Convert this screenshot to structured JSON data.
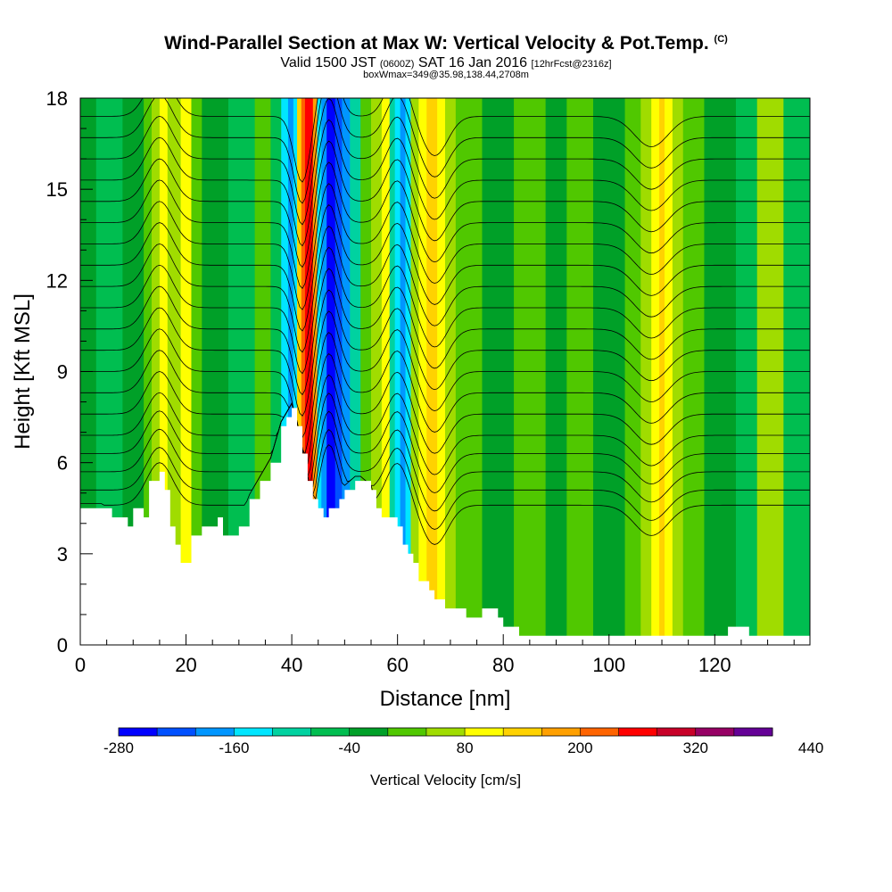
{
  "header": {
    "title": "Wind-Parallel Section at Max W: Vertical Velocity & Pot.Temp.",
    "copyright": "(C)",
    "valid_prefix": "Valid 1500 JST",
    "valid_zulu": "(0600Z)",
    "valid_date": "SAT 16 Jan 2016",
    "forecast": "[12hrFcst@2316z]",
    "box_info": "boxWmax=349@35.98,138.44,2708m"
  },
  "chart_data": {
    "type": "heatmap",
    "xlabel": "Distance [nm]",
    "ylabel": "Height [Kft MSL]",
    "xlim": [
      0,
      138
    ],
    "ylim": [
      0,
      18
    ],
    "x_ticks": [
      "0",
      "20",
      "40",
      "60",
      "80",
      "100",
      "120"
    ],
    "y_ticks": [
      "0",
      "3",
      "6",
      "9",
      "12",
      "15",
      "18"
    ],
    "colorbar": {
      "label": "Vertical Velocity [cm/s]",
      "tick_labels": [
        "-280",
        "-160",
        "-40",
        "80",
        "200",
        "320",
        "440"
      ],
      "colors": [
        "#0000ff",
        "#0050ff",
        "#0096ff",
        "#00e6ff",
        "#00d2a0",
        "#00be50",
        "#00a028",
        "#50c800",
        "#a0dc00",
        "#ffff00",
        "#ffd200",
        "#ffa000",
        "#ff6400",
        "#ff0000",
        "#c80028",
        "#960064",
        "#640096"
      ]
    },
    "velocity_bands": [
      {
        "x": [
          0,
          3
        ],
        "color": "#00a028"
      },
      {
        "x": [
          3,
          8
        ],
        "color": "#00be50"
      },
      {
        "x": [
          8,
          12
        ],
        "color": "#00a028"
      },
      {
        "x": [
          12,
          13.5
        ],
        "color": "#50c800"
      },
      {
        "x": [
          13.5,
          15
        ],
        "color": "#a0dc00"
      },
      {
        "x": [
          15,
          16.5
        ],
        "color": "#ffff00"
      },
      {
        "x": [
          16.5,
          19
        ],
        "color": "#a0dc00"
      },
      {
        "x": [
          19,
          21
        ],
        "color": "#ffff00"
      },
      {
        "x": [
          21,
          23
        ],
        "color": "#50c800"
      },
      {
        "x": [
          23,
          28
        ],
        "color": "#00a028"
      },
      {
        "x": [
          28,
          33
        ],
        "color": "#00be50"
      },
      {
        "x": [
          33,
          36
        ],
        "color": "#50c800"
      },
      {
        "x": [
          36,
          38
        ],
        "color": "#00be50"
      },
      {
        "x": [
          38,
          39.3
        ],
        "color": "#00e6ff"
      },
      {
        "x": [
          39.3,
          40.3
        ],
        "color": "#0096ff"
      },
      {
        "x": [
          40.3,
          41
        ],
        "color": "#00e6ff"
      },
      {
        "x": [
          41,
          41.8
        ],
        "color": "#ffd200"
      },
      {
        "x": [
          41.8,
          42.5
        ],
        "color": "#ff6400"
      },
      {
        "x": [
          42.5,
          44
        ],
        "color": "#ff0000"
      },
      {
        "x": [
          44,
          44.8
        ],
        "color": "#ffa000"
      },
      {
        "x": [
          44.8,
          45.6
        ],
        "color": "#00e6ff"
      },
      {
        "x": [
          45.6,
          46.6
        ],
        "color": "#0096ff"
      },
      {
        "x": [
          46.6,
          48.2
        ],
        "color": "#0000ff"
      },
      {
        "x": [
          48.2,
          49.5
        ],
        "color": "#0050ff"
      },
      {
        "x": [
          49.5,
          51
        ],
        "color": "#0096ff"
      },
      {
        "x": [
          51,
          53
        ],
        "color": "#00d2a0"
      },
      {
        "x": [
          53,
          55
        ],
        "color": "#50c800"
      },
      {
        "x": [
          55,
          57
        ],
        "color": "#a0dc00"
      },
      {
        "x": [
          57,
          58.5
        ],
        "color": "#ffff00"
      },
      {
        "x": [
          58.5,
          59.5
        ],
        "color": "#00d2a0"
      },
      {
        "x": [
          59.5,
          60.5
        ],
        "color": "#00e6ff"
      },
      {
        "x": [
          60.5,
          61.5
        ],
        "color": "#0096ff"
      },
      {
        "x": [
          61.5,
          62.5
        ],
        "color": "#00e6ff"
      },
      {
        "x": [
          62.5,
          64
        ],
        "color": "#a0dc00"
      },
      {
        "x": [
          64,
          65.5
        ],
        "color": "#ffff00"
      },
      {
        "x": [
          65.5,
          67.5
        ],
        "color": "#ffd200"
      },
      {
        "x": [
          67.5,
          69
        ],
        "color": "#ffff00"
      },
      {
        "x": [
          69,
          71
        ],
        "color": "#a0dc00"
      },
      {
        "x": [
          71,
          76
        ],
        "color": "#50c800"
      },
      {
        "x": [
          76,
          82
        ],
        "color": "#00a028"
      },
      {
        "x": [
          82,
          88
        ],
        "color": "#50c800"
      },
      {
        "x": [
          88,
          92
        ],
        "color": "#00a028"
      },
      {
        "x": [
          92,
          97
        ],
        "color": "#50c800"
      },
      {
        "x": [
          97,
          103
        ],
        "color": "#00a028"
      },
      {
        "x": [
          103,
          106
        ],
        "color": "#50c800"
      },
      {
        "x": [
          106,
          108
        ],
        "color": "#a0dc00"
      },
      {
        "x": [
          108,
          109.5
        ],
        "color": "#ffff00"
      },
      {
        "x": [
          109.5,
          110.5
        ],
        "color": "#ffd200"
      },
      {
        "x": [
          110.5,
          112
        ],
        "color": "#ffff00"
      },
      {
        "x": [
          112,
          114
        ],
        "color": "#a0dc00"
      },
      {
        "x": [
          114,
          118
        ],
        "color": "#50c800"
      },
      {
        "x": [
          118,
          124
        ],
        "color": "#00a028"
      },
      {
        "x": [
          124,
          128
        ],
        "color": "#00be50"
      },
      {
        "x": [
          128,
          133
        ],
        "color": "#a0dc00"
      },
      {
        "x": [
          133,
          138
        ],
        "color": "#00be50"
      }
    ],
    "terrain_height_kft": [
      [
        0,
        4.5
      ],
      [
        4,
        4.5
      ],
      [
        6,
        4.2
      ],
      [
        8,
        4.2
      ],
      [
        9,
        3.9
      ],
      [
        10,
        4.5
      ],
      [
        12,
        4.2
      ],
      [
        13,
        5.4
      ],
      [
        15,
        5.7
      ],
      [
        16,
        5.1
      ],
      [
        17,
        3.9
      ],
      [
        18,
        3.3
      ],
      [
        19,
        2.7
      ],
      [
        20,
        2.7
      ],
      [
        21,
        3.6
      ],
      [
        23,
        3.9
      ],
      [
        25,
        3.9
      ],
      [
        26,
        4.2
      ],
      [
        27,
        3.6
      ],
      [
        29,
        3.6
      ],
      [
        30,
        3.9
      ],
      [
        32,
        4.8
      ],
      [
        34,
        5.4
      ],
      [
        36,
        6.0
      ],
      [
        38,
        7.2
      ],
      [
        39,
        7.5
      ],
      [
        40,
        7.8
      ],
      [
        41,
        7.2
      ],
      [
        42,
        6.3
      ],
      [
        43,
        5.4
      ],
      [
        44,
        4.8
      ],
      [
        45,
        4.5
      ],
      [
        46,
        4.2
      ],
      [
        47,
        4.5
      ],
      [
        48,
        4.5
      ],
      [
        49,
        4.8
      ],
      [
        50,
        5.1
      ],
      [
        52,
        5.4
      ],
      [
        53,
        5.4
      ],
      [
        55,
        5.1
      ],
      [
        56,
        4.5
      ],
      [
        57,
        4.2
      ],
      [
        59,
        4.2
      ],
      [
        60,
        3.9
      ],
      [
        61,
        3.3
      ],
      [
        62,
        3.0
      ],
      [
        63,
        2.7
      ],
      [
        64,
        2.1
      ],
      [
        65,
        2.1
      ],
      [
        66,
        1.8
      ],
      [
        67,
        1.5
      ],
      [
        68,
        1.5
      ],
      [
        69,
        1.2
      ],
      [
        72,
        1.2
      ],
      [
        73,
        0.9
      ],
      [
        75,
        0.9
      ],
      [
        76,
        1.2
      ],
      [
        78,
        1.2
      ],
      [
        79,
        0.9
      ],
      [
        80,
        0.6
      ],
      [
        82,
        0.6
      ],
      [
        83,
        0.3
      ],
      [
        122,
        0.3
      ],
      [
        122.5,
        0.6
      ],
      [
        126,
        0.6
      ],
      [
        126.5,
        0.3
      ],
      [
        138,
        0.3
      ]
    ],
    "theta_contour_base_kft": [
      4.6,
      5.1,
      5.7,
      6.3,
      6.9,
      7.6,
      8.3,
      9.0,
      9.7,
      10.4,
      11.1,
      11.8,
      12.5,
      13.2,
      13.9,
      14.6,
      15.3,
      16.0,
      16.7,
      17.4
    ],
    "contour_perturbations": [
      {
        "center_x": 15,
        "width_nm": 3.5,
        "shift_kft": 1.4
      },
      {
        "center_x": 42,
        "width_nm": 2.2,
        "shift_kft": -2.2
      },
      {
        "center_x": 47,
        "width_nm": 2.5,
        "shift_kft": 2.0
      },
      {
        "center_x": 60,
        "width_nm": 3.0,
        "shift_kft": 1.4
      },
      {
        "center_x": 67,
        "width_nm": 3.5,
        "shift_kft": -1.3
      },
      {
        "center_x": 108,
        "width_nm": 4.5,
        "shift_kft": -1.0
      }
    ]
  }
}
